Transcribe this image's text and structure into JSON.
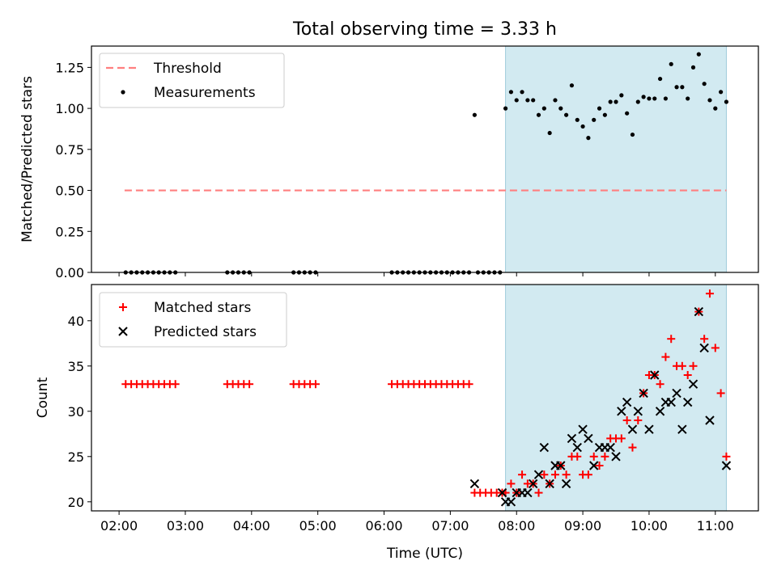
{
  "title": "Total observing time = 3.33 h",
  "xlabel": "Time (UTC)",
  "xticks": [
    "02:00",
    "03:00",
    "04:00",
    "05:00",
    "06:00",
    "07:00",
    "08:00",
    "09:00",
    "10:00",
    "11:00"
  ],
  "shaded_region": {
    "start": "07:50",
    "end": "11:10",
    "color": "#add8e6"
  },
  "colors": {
    "threshold": "#ff7f7f",
    "measurement": "#000000",
    "matched": "#ff0000",
    "predicted": "#000000"
  },
  "chart_data": [
    {
      "type": "scatter",
      "ylabel": "Matched/Predicted stars",
      "ylim": [
        0,
        1.38
      ],
      "yticks": [
        "0.00",
        "0.25",
        "0.50",
        "0.75",
        "1.00",
        "1.25"
      ],
      "legend_position": "top-left",
      "series": [
        {
          "name": "Threshold",
          "style": "dashed-line",
          "points": [
            [
              "02:05",
              0.5
            ],
            [
              "11:10",
              0.5
            ]
          ]
        },
        {
          "name": "Measurements",
          "style": "dot",
          "points": [
            [
              "02:06",
              0
            ],
            [
              "02:11",
              0
            ],
            [
              "02:16",
              0
            ],
            [
              "02:21",
              0
            ],
            [
              "02:26",
              0
            ],
            [
              "02:31",
              0
            ],
            [
              "02:36",
              0
            ],
            [
              "02:41",
              0
            ],
            [
              "02:46",
              0
            ],
            [
              "02:51",
              0
            ],
            [
              "03:38",
              0
            ],
            [
              "03:43",
              0
            ],
            [
              "03:48",
              0
            ],
            [
              "03:53",
              0
            ],
            [
              "03:58",
              0
            ],
            [
              "04:38",
              0
            ],
            [
              "04:43",
              0
            ],
            [
              "04:48",
              0
            ],
            [
              "04:53",
              0
            ],
            [
              "04:58",
              0
            ],
            [
              "06:07",
              0
            ],
            [
              "06:12",
              0
            ],
            [
              "06:17",
              0
            ],
            [
              "06:22",
              0
            ],
            [
              "06:27",
              0
            ],
            [
              "06:32",
              0
            ],
            [
              "06:37",
              0
            ],
            [
              "06:42",
              0
            ],
            [
              "06:47",
              0
            ],
            [
              "06:52",
              0
            ],
            [
              "06:57",
              0
            ],
            [
              "07:02",
              0
            ],
            [
              "07:07",
              0
            ],
            [
              "07:12",
              0
            ],
            [
              "07:17",
              0
            ],
            [
              "07:22",
              0.96
            ],
            [
              "07:25",
              0
            ],
            [
              "07:30",
              0
            ],
            [
              "07:35",
              0
            ],
            [
              "07:40",
              0
            ],
            [
              "07:45",
              0
            ],
            [
              "07:50",
              1.0
            ],
            [
              "07:55",
              1.1
            ],
            [
              "08:00",
              1.05
            ],
            [
              "08:05",
              1.1
            ],
            [
              "08:10",
              1.05
            ],
            [
              "08:15",
              1.05
            ],
            [
              "08:20",
              0.96
            ],
            [
              "08:25",
              1.0
            ],
            [
              "08:30",
              0.85
            ],
            [
              "08:35",
              1.05
            ],
            [
              "08:40",
              1.0
            ],
            [
              "08:45",
              0.96
            ],
            [
              "08:50",
              1.14
            ],
            [
              "08:55",
              0.93
            ],
            [
              "09:00",
              0.89
            ],
            [
              "09:05",
              0.82
            ],
            [
              "09:10",
              0.93
            ],
            [
              "09:15",
              1.0
            ],
            [
              "09:20",
              0.96
            ],
            [
              "09:25",
              1.04
            ],
            [
              "09:30",
              1.04
            ],
            [
              "09:35",
              1.08
            ],
            [
              "09:40",
              0.97
            ],
            [
              "09:45",
              0.84
            ],
            [
              "09:50",
              1.04
            ],
            [
              "09:55",
              1.07
            ],
            [
              "10:00",
              1.06
            ],
            [
              "10:05",
              1.06
            ],
            [
              "10:10",
              1.18
            ],
            [
              "10:15",
              1.06
            ],
            [
              "10:20",
              1.27
            ],
            [
              "10:25",
              1.13
            ],
            [
              "10:30",
              1.13
            ],
            [
              "10:35",
              1.06
            ],
            [
              "10:40",
              1.25
            ],
            [
              "10:45",
              1.33
            ],
            [
              "10:50",
              1.15
            ],
            [
              "10:55",
              1.05
            ],
            [
              "11:00",
              1.0
            ],
            [
              "11:05",
              1.1
            ],
            [
              "11:10",
              1.04
            ]
          ]
        }
      ]
    },
    {
      "type": "scatter",
      "ylabel": "Count",
      "ylim": [
        19,
        44
      ],
      "yticks": [
        "20",
        "25",
        "30",
        "35",
        "40"
      ],
      "legend_position": "top-left",
      "series": [
        {
          "name": "Matched stars",
          "style": "plus",
          "points": [
            [
              "02:06",
              33
            ],
            [
              "02:11",
              33
            ],
            [
              "02:16",
              33
            ],
            [
              "02:21",
              33
            ],
            [
              "02:26",
              33
            ],
            [
              "02:31",
              33
            ],
            [
              "02:36",
              33
            ],
            [
              "02:41",
              33
            ],
            [
              "02:46",
              33
            ],
            [
              "02:51",
              33
            ],
            [
              "03:38",
              33
            ],
            [
              "03:43",
              33
            ],
            [
              "03:48",
              33
            ],
            [
              "03:53",
              33
            ],
            [
              "03:58",
              33
            ],
            [
              "04:38",
              33
            ],
            [
              "04:43",
              33
            ],
            [
              "04:48",
              33
            ],
            [
              "04:53",
              33
            ],
            [
              "04:58",
              33
            ],
            [
              "06:07",
              33
            ],
            [
              "06:12",
              33
            ],
            [
              "06:17",
              33
            ],
            [
              "06:22",
              33
            ],
            [
              "06:27",
              33
            ],
            [
              "06:32",
              33
            ],
            [
              "06:37",
              33
            ],
            [
              "06:42",
              33
            ],
            [
              "06:47",
              33
            ],
            [
              "06:52",
              33
            ],
            [
              "06:57",
              33
            ],
            [
              "07:02",
              33
            ],
            [
              "07:07",
              33
            ],
            [
              "07:12",
              33
            ],
            [
              "07:17",
              33
            ],
            [
              "07:22",
              21
            ],
            [
              "07:27",
              21
            ],
            [
              "07:32",
              21
            ],
            [
              "07:37",
              21
            ],
            [
              "07:42",
              21
            ],
            [
              "07:47",
              21
            ],
            [
              "07:50",
              21
            ],
            [
              "07:55",
              22
            ],
            [
              "08:00",
              21
            ],
            [
              "08:05",
              23
            ],
            [
              "08:10",
              22
            ],
            [
              "08:15",
              22
            ],
            [
              "08:20",
              21
            ],
            [
              "08:25",
              23
            ],
            [
              "08:30",
              22
            ],
            [
              "08:35",
              23
            ],
            [
              "08:40",
              24
            ],
            [
              "08:45",
              23
            ],
            [
              "08:50",
              25
            ],
            [
              "08:55",
              25
            ],
            [
              "09:00",
              23
            ],
            [
              "09:05",
              23
            ],
            [
              "09:10",
              25
            ],
            [
              "09:15",
              24
            ],
            [
              "09:20",
              25
            ],
            [
              "09:25",
              27
            ],
            [
              "09:30",
              27
            ],
            [
              "09:35",
              27
            ],
            [
              "09:40",
              29
            ],
            [
              "09:45",
              26
            ],
            [
              "09:50",
              29
            ],
            [
              "09:55",
              32
            ],
            [
              "10:00",
              34
            ],
            [
              "10:05",
              34
            ],
            [
              "10:10",
              33
            ],
            [
              "10:15",
              36
            ],
            [
              "10:20",
              38
            ],
            [
              "10:25",
              35
            ],
            [
              "10:30",
              35
            ],
            [
              "10:35",
              34
            ],
            [
              "10:40",
              35
            ],
            [
              "10:45",
              41
            ],
            [
              "10:50",
              38
            ],
            [
              "10:55",
              43
            ],
            [
              "11:00",
              37
            ],
            [
              "11:05",
              32
            ],
            [
              "11:10",
              25
            ]
          ]
        },
        {
          "name": "Predicted stars",
          "style": "x",
          "points": [
            [
              "07:22",
              22
            ],
            [
              "07:47",
              21
            ],
            [
              "07:50",
              20
            ],
            [
              "07:55",
              20
            ],
            [
              "08:00",
              21
            ],
            [
              "08:05",
              21
            ],
            [
              "08:10",
              21
            ],
            [
              "08:15",
              22
            ],
            [
              "08:20",
              23
            ],
            [
              "08:25",
              26
            ],
            [
              "08:30",
              22
            ],
            [
              "08:35",
              24
            ],
            [
              "08:40",
              24
            ],
            [
              "08:45",
              22
            ],
            [
              "08:50",
              27
            ],
            [
              "08:55",
              26
            ],
            [
              "09:00",
              28
            ],
            [
              "09:05",
              27
            ],
            [
              "09:10",
              24
            ],
            [
              "09:15",
              26
            ],
            [
              "09:20",
              26
            ],
            [
              "09:25",
              26
            ],
            [
              "09:30",
              25
            ],
            [
              "09:35",
              30
            ],
            [
              "09:40",
              31
            ],
            [
              "09:45",
              28
            ],
            [
              "09:50",
              30
            ],
            [
              "09:55",
              32
            ],
            [
              "10:00",
              28
            ],
            [
              "10:05",
              34
            ],
            [
              "10:10",
              30
            ],
            [
              "10:15",
              31
            ],
            [
              "10:20",
              31
            ],
            [
              "10:25",
              32
            ],
            [
              "10:30",
              28
            ],
            [
              "10:35",
              31
            ],
            [
              "10:40",
              33
            ],
            [
              "10:45",
              41
            ],
            [
              "10:50",
              37
            ],
            [
              "10:55",
              29
            ],
            [
              "11:10",
              24
            ]
          ]
        }
      ]
    }
  ]
}
